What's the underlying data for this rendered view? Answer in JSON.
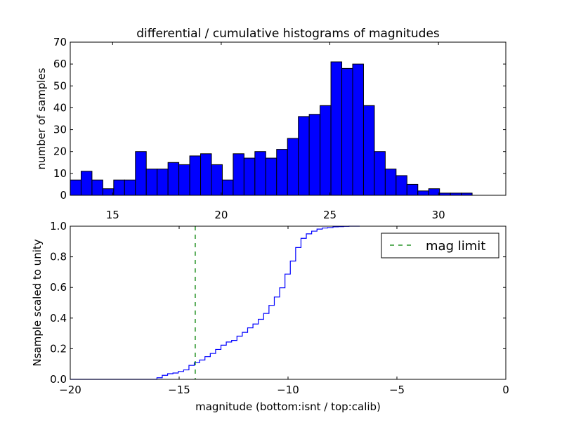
{
  "chart_data": [
    {
      "type": "bar",
      "title": "differential / cumulative histograms of magnitudes",
      "xlabel": "",
      "ylabel": "number of samples",
      "bin_start": 13.05,
      "bin_width": 0.5,
      "values": [
        7,
        11,
        7,
        3,
        7,
        7,
        20,
        12,
        12,
        15,
        14,
        18,
        19,
        14,
        7,
        19,
        17,
        20,
        17,
        21,
        26,
        36,
        37,
        41,
        61,
        58,
        60,
        41,
        20,
        12,
        9,
        5,
        2,
        3,
        1,
        1,
        1
      ],
      "xlim": [
        13.05,
        33.1
      ],
      "ylim": [
        0,
        70
      ],
      "xticks": [
        "15",
        "20",
        "25",
        "30"
      ],
      "xtick_values": [
        15,
        20,
        25,
        30
      ],
      "yticks": [
        "0",
        "10",
        "20",
        "30",
        "40",
        "50",
        "60",
        "70"
      ],
      "ytick_values": [
        0,
        10,
        20,
        30,
        40,
        50,
        60,
        70
      ],
      "color": "#0000ff"
    },
    {
      "type": "line",
      "xlabel": "magnitude (bottom:isnt / top:calib)",
      "ylabel": "Nsample scaled to unity",
      "step_start": -16.02,
      "step_width": 0.245,
      "note": "cumulative normalized of the counts above",
      "xlim": [
        -20,
        0
      ],
      "ylim": [
        0,
        1
      ],
      "xticks": [
        "−20",
        "−15",
        "−10",
        "−5",
        "0"
      ],
      "xtick_values": [
        -20,
        -15,
        -10,
        -5,
        0
      ],
      "yticks": [
        "0.0",
        "0.2",
        "0.4",
        "0.6",
        "0.8",
        "1.0"
      ],
      "ytick_values": [
        0,
        0.2,
        0.4,
        0.6,
        0.8,
        1.0
      ],
      "mag_limit": -14.26,
      "legend": {
        "label": "mag limit",
        "placement": "top-right"
      },
      "color": "#0000ff",
      "limit_color": "#008000"
    }
  ]
}
